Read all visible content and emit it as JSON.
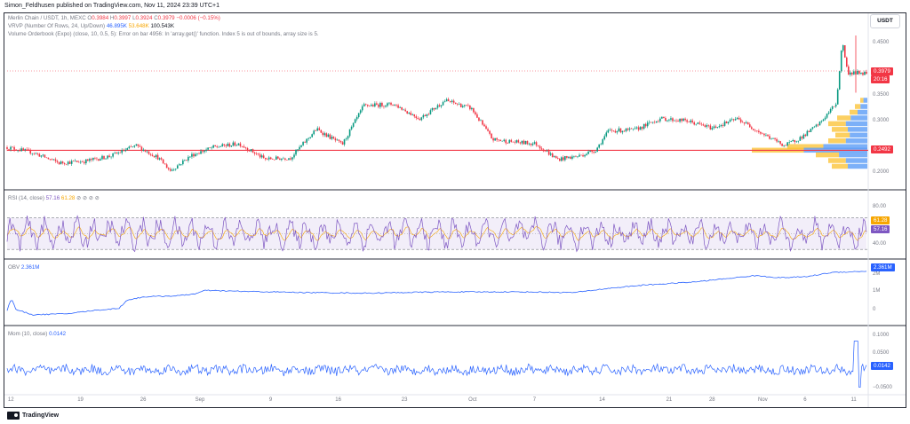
{
  "header": {
    "published_text": "Simon_Feldhusen published on TradingView.com, Nov 11, 2024 23:39 UTC+1"
  },
  "main_pane": {
    "symbol_line": {
      "name": "Merlin Chain / USDT, 1h, MEXC",
      "o_label": "O",
      "o_value": "0.3984",
      "h_label": "H",
      "h_value": "0.3997",
      "l_label": "L",
      "l_value": "0.3924",
      "c_label": "C",
      "c_value": "0.3979",
      "change": "−0.0006 (−0.15%)"
    },
    "vrvp_line": {
      "name": "VRVP (Number Of Rows, 24, Up/Down)",
      "v1": "46.895K",
      "v2": "53.648K",
      "v3": "100.543K"
    },
    "orderbook_line": "Volume Orderbook (Expo) (close, 10, 0.5, 5): Error on bar 4956: In 'array.get()' function. Index 5 is out of bounds, array size is 5.",
    "currency_button": "USDT",
    "price_axis": [
      "0.4500",
      "0.4000",
      "0.3500",
      "0.3000",
      "0.2500",
      "0.2000"
    ],
    "last_price_tag": "0.3979",
    "countdown_tag": "20:16",
    "support_tag": "0.2492",
    "support_level": 0.2492,
    "price_range": [
      0.18,
      0.47
    ]
  },
  "rsi_pane": {
    "title": "RSI (14, close)",
    "value_main": "57.16",
    "value_ma": "61.28",
    "extra": "⊘ ⊘ ⊘ ⊘",
    "axis": [
      "80.00",
      "60.00",
      "40.00"
    ],
    "tag_ma": "61.28",
    "tag_main": "57.16"
  },
  "obv_pane": {
    "title": "OBV",
    "value": "2.361M",
    "axis": [
      "2M",
      "1M",
      "0"
    ],
    "tag": "2.361M"
  },
  "mom_pane": {
    "title": "Mom (10, close)",
    "value": "0.0142",
    "axis": [
      "0.1000",
      "0.0500",
      "0.0000",
      "−0.0500"
    ],
    "tag": "0.0142"
  },
  "time_axis": [
    "12",
    "19",
    "26",
    "Sep",
    "9",
    "16",
    "23",
    "Oct",
    "7",
    "14",
    "21",
    "28",
    "Nov",
    "6",
    "11"
  ],
  "footer": {
    "logo_text": "TradingView"
  },
  "colors": {
    "up": "#089981",
    "down": "#f23645",
    "rsi": "#7e57c2",
    "rsi_ma": "#f7a600",
    "obv": "#2962ff",
    "mom": "#2962ff",
    "support": "#f23645",
    "vp_up": "#5b9cf6",
    "vp_down": "#fbc02d"
  },
  "chart_data": {
    "type": "candlestick",
    "title": "Merlin Chain / USDT, 1h, MEXC",
    "y_range": [
      0.18,
      0.47
    ],
    "price_path": [
      [
        0,
        0.255
      ],
      [
        0.03,
        0.245
      ],
      [
        0.06,
        0.225
      ],
      [
        0.09,
        0.228
      ],
      [
        0.12,
        0.238
      ],
      [
        0.15,
        0.258
      ],
      [
        0.175,
        0.236
      ],
      [
        0.19,
        0.21
      ],
      [
        0.215,
        0.24
      ],
      [
        0.24,
        0.255
      ],
      [
        0.27,
        0.262
      ],
      [
        0.3,
        0.232
      ],
      [
        0.33,
        0.235
      ],
      [
        0.36,
        0.29
      ],
      [
        0.39,
        0.26
      ],
      [
        0.415,
        0.335
      ],
      [
        0.45,
        0.338
      ],
      [
        0.48,
        0.31
      ],
      [
        0.51,
        0.345
      ],
      [
        0.54,
        0.33
      ],
      [
        0.565,
        0.27
      ],
      [
        0.59,
        0.265
      ],
      [
        0.615,
        0.262
      ],
      [
        0.64,
        0.232
      ],
      [
        0.665,
        0.238
      ],
      [
        0.685,
        0.25
      ],
      [
        0.7,
        0.287
      ],
      [
        0.73,
        0.288
      ],
      [
        0.76,
        0.31
      ],
      [
        0.79,
        0.306
      ],
      [
        0.82,
        0.292
      ],
      [
        0.85,
        0.31
      ],
      [
        0.88,
        0.28
      ],
      [
        0.905,
        0.258
      ],
      [
        0.925,
        0.275
      ],
      [
        0.945,
        0.3
      ],
      [
        0.955,
        0.32
      ],
      [
        0.965,
        0.34
      ],
      [
        0.972,
        0.46
      ],
      [
        0.978,
        0.398
      ]
    ]
  }
}
